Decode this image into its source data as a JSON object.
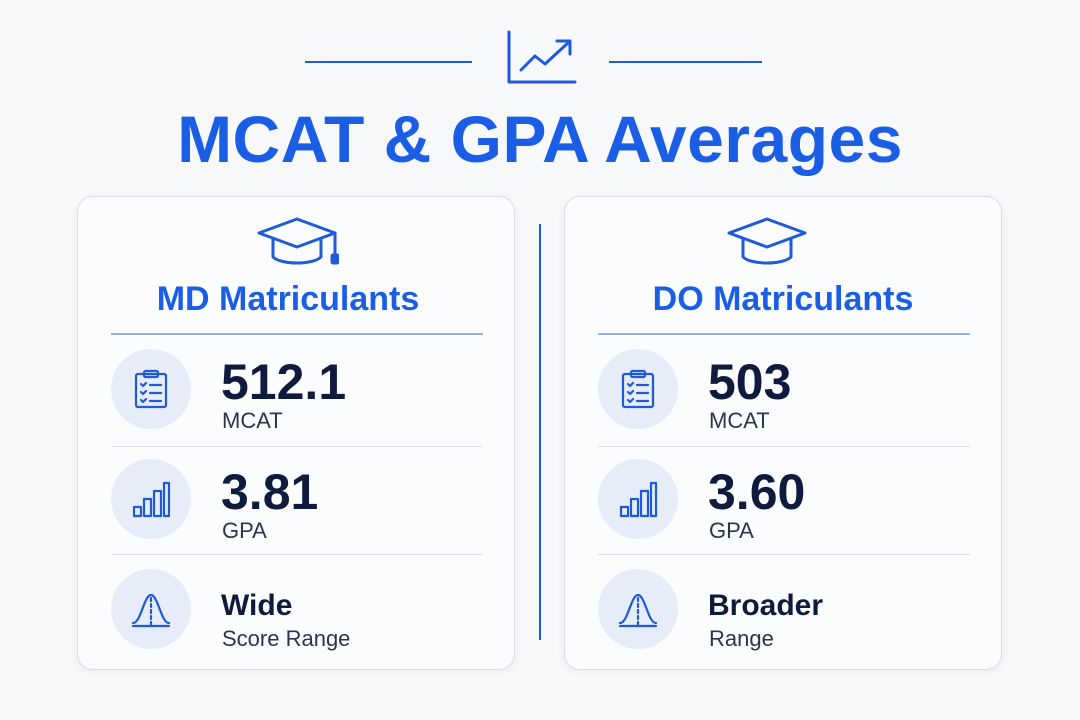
{
  "header": {
    "title": "MCAT & GPA Averages",
    "icon": "trend-up-icon",
    "accent_color": "#1b5ee6"
  },
  "cards": [
    {
      "icon": "graduation-cap-icon",
      "title": "MD Matriculants",
      "stats": [
        {
          "icon": "clipboard-checklist-icon",
          "value": "512.1",
          "label": "MCAT"
        },
        {
          "icon": "bar-chart-icon",
          "value": "3.81",
          "label": "GPA"
        },
        {
          "icon": "bell-curve-icon",
          "value": "Wide",
          "label": "Score Range"
        }
      ]
    },
    {
      "icon": "graduation-cap-icon",
      "title": "DO Matriculants",
      "stats": [
        {
          "icon": "clipboard-checklist-icon",
          "value": "503",
          "label": "MCAT"
        },
        {
          "icon": "bar-chart-icon",
          "value": "3.60",
          "label": "GPA"
        },
        {
          "icon": "bell-curve-icon",
          "value": "Broader",
          "label": "Range"
        }
      ]
    }
  ]
}
